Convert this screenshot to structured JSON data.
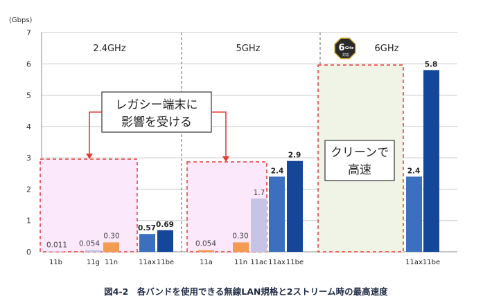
{
  "chart_data": {
    "type": "bar",
    "unit_label": "(Gbps)",
    "ylim": [
      0,
      7
    ],
    "yticks": [
      "0",
      "1",
      "2",
      "3",
      "4",
      "5",
      "6",
      "7"
    ],
    "grid": true,
    "bands": [
      {
        "label": "2.4GHz"
      },
      {
        "label": "5GHz"
      },
      {
        "label": "6GHz",
        "badge": {
          "main": "6",
          "ghz": "GHz",
          "sub": "対応"
        }
      }
    ],
    "bars": [
      {
        "band": 0,
        "standard": "11b",
        "value": 0.011,
        "label": "0.011",
        "color": "#c7c3e6"
      },
      {
        "band": 0,
        "standard": "11g",
        "value": 0.054,
        "label": "0.054",
        "color": "#c7c3e6"
      },
      {
        "band": 0,
        "standard": "11n",
        "value": 0.3,
        "label": "0.30",
        "color": "#f39a53"
      },
      {
        "band": 0,
        "standard": "11ax",
        "value": 0.57,
        "label": "0.57",
        "color": "#3d6fbf"
      },
      {
        "band": 0,
        "standard": "11be",
        "value": 0.69,
        "label": "0.69",
        "color": "#14469a"
      },
      {
        "band": 1,
        "standard": "11a",
        "value": 0.054,
        "label": "0.054",
        "color": "#f39a53"
      },
      {
        "band": 1,
        "standard": "11n",
        "value": 0.3,
        "label": "0.30",
        "color": "#f39a53"
      },
      {
        "band": 1,
        "standard": "11ac",
        "value": 1.7,
        "label": "1.7",
        "color": "#c7c3e6"
      },
      {
        "band": 1,
        "standard": "11ax",
        "value": 2.4,
        "label": "2.4",
        "color": "#3d6fbf"
      },
      {
        "band": 1,
        "standard": "11be",
        "value": 2.9,
        "label": "2.9",
        "color": "#14469a"
      },
      {
        "band": 2,
        "standard": "11ax",
        "value": 2.4,
        "label": "2.4",
        "color": "#3d6fbf"
      },
      {
        "band": 2,
        "standard": "11be",
        "value": 5.8,
        "label": "5.8",
        "color": "#14469a"
      }
    ],
    "annotations": {
      "legacy": [
        "レガシー端末に",
        "影響を受ける"
      ],
      "clean": [
        "クリーンで",
        "高速"
      ]
    },
    "colors": {
      "legacy_fill": "#fbe9fb",
      "clean_fill": "#f0f4e6",
      "dash": "#e53935",
      "axis_text": "#333333",
      "grid": "#c9c9c9"
    },
    "caption": "図4-2　各バンドを使用できる無線LAN規格と2ストリーム時の最高速度"
  }
}
